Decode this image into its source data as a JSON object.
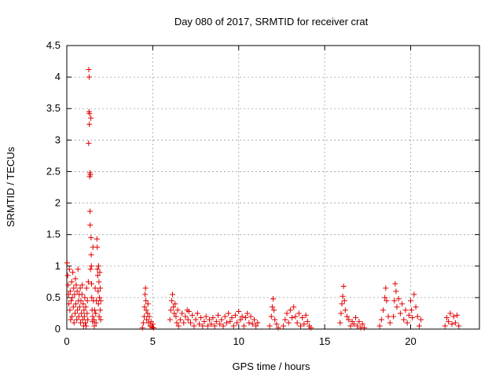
{
  "chart_data": {
    "type": "scatter",
    "title": "Day 080 of 2017, SRMTID for receiver crat",
    "xlabel": "GPS time / hours",
    "ylabel": "SRMTID / TECUs",
    "xlim": [
      0,
      24
    ],
    "ylim": [
      0,
      4.5
    ],
    "x_ticks": [
      0,
      5,
      10,
      15,
      20
    ],
    "x_tick_labels": [
      "0",
      "5",
      "10",
      "15",
      "20"
    ],
    "y_ticks": [
      0,
      0.5,
      1,
      1.5,
      2,
      2.5,
      3,
      3.5,
      4,
      4.5
    ],
    "y_tick_labels": [
      "0",
      "0.5",
      "1",
      "1.5",
      "2",
      "2.5",
      "3",
      "3.5",
      "4",
      "4.5"
    ],
    "grid": true,
    "marker": "+",
    "marker_color": "#e00000",
    "series": [
      {
        "name": "SRMTID",
        "points": [
          [
            0.02,
            1.05
          ],
          [
            0.05,
            0.85
          ],
          [
            0.08,
            0.7
          ],
          [
            0.1,
            0.55
          ],
          [
            0.12,
            0.4
          ],
          [
            0.15,
            0.95
          ],
          [
            0.18,
            0.3
          ],
          [
            0.2,
            0.6
          ],
          [
            0.22,
            0.15
          ],
          [
            0.25,
            0.45
          ],
          [
            0.28,
            0.75
          ],
          [
            0.3,
            0.2
          ],
          [
            0.32,
            0.5
          ],
          [
            0.35,
            0.9
          ],
          [
            0.38,
            0.35
          ],
          [
            0.4,
            0.65
          ],
          [
            0.42,
            0.1
          ],
          [
            0.45,
            0.55
          ],
          [
            0.48,
            0.25
          ],
          [
            0.5,
            0.8
          ],
          [
            0.52,
            0.4
          ],
          [
            0.55,
            0.7
          ],
          [
            0.58,
            0.15
          ],
          [
            0.6,
            0.6
          ],
          [
            0.62,
            0.3
          ],
          [
            0.65,
            0.95
          ],
          [
            0.68,
            0.45
          ],
          [
            0.7,
            0.2
          ],
          [
            0.72,
            0.55
          ],
          [
            0.75,
            0.35
          ],
          [
            0.78,
            0.65
          ],
          [
            0.8,
            0.1
          ],
          [
            0.82,
            0.45
          ],
          [
            0.85,
            0.25
          ],
          [
            0.88,
            0.55
          ],
          [
            0.9,
            0.7
          ],
          [
            0.92,
            0.15
          ],
          [
            0.95,
            0.4
          ],
          [
            0.98,
            0.05
          ],
          [
            1.0,
            0.3
          ],
          [
            1.02,
            0.2
          ],
          [
            1.05,
            0.5
          ],
          [
            1.08,
            0.1
          ],
          [
            1.1,
            0.35
          ],
          [
            1.12,
            0.05
          ],
          [
            1.15,
            0.65
          ],
          [
            1.18,
            0.25
          ],
          [
            1.2,
            0.45
          ],
          [
            1.22,
            0.15
          ],
          [
            1.25,
            0.75
          ],
          [
            1.27,
            2.95
          ],
          [
            1.28,
            4.12
          ],
          [
            1.29,
            3.45
          ],
          [
            1.3,
            4.0
          ],
          [
            1.31,
            3.25
          ],
          [
            1.32,
            3.42
          ],
          [
            1.33,
            2.42
          ],
          [
            1.34,
            2.48
          ],
          [
            1.35,
            1.87
          ],
          [
            1.36,
            1.65
          ],
          [
            1.37,
            2.45
          ],
          [
            1.38,
            0.95
          ],
          [
            1.4,
            3.35
          ],
          [
            1.41,
            1.45
          ],
          [
            1.42,
            1.18
          ],
          [
            1.43,
            1.0
          ],
          [
            1.44,
            0.72
          ],
          [
            1.45,
            0.5
          ],
          [
            1.47,
            0.3
          ],
          [
            1.49,
            0.12
          ],
          [
            1.5,
            0.2
          ],
          [
            1.52,
            1.3
          ],
          [
            1.55,
            0.45
          ],
          [
            1.58,
            0.15
          ],
          [
            1.6,
            0.05
          ],
          [
            1.62,
            0.3
          ],
          [
            1.65,
            0.65
          ],
          [
            1.68,
            0.25
          ],
          [
            1.7,
            0.1
          ],
          [
            1.72,
            0.45
          ],
          [
            1.75,
            1.43
          ],
          [
            1.77,
            1.3
          ],
          [
            1.78,
            0.95
          ],
          [
            1.8,
            0.85
          ],
          [
            1.82,
            0.6
          ],
          [
            1.84,
            0.4
          ],
          [
            1.85,
            1.0
          ],
          [
            1.87,
            0.75
          ],
          [
            1.88,
            0.2
          ],
          [
            1.9,
            0.5
          ],
          [
            1.92,
            0.9
          ],
          [
            1.94,
            0.3
          ],
          [
            1.95,
            0.65
          ],
          [
            1.97,
            0.15
          ],
          [
            1.98,
            0.45
          ],
          [
            4.4,
            0.02
          ],
          [
            4.45,
            0.1
          ],
          [
            4.5,
            0.2
          ],
          [
            4.52,
            0.35
          ],
          [
            4.55,
            0.55
          ],
          [
            4.58,
            0.65
          ],
          [
            4.6,
            0.45
          ],
          [
            4.62,
            0.3
          ],
          [
            4.65,
            0.15
          ],
          [
            4.7,
            0.25
          ],
          [
            4.72,
            0.4
          ],
          [
            4.75,
            0.1
          ],
          [
            4.8,
            0.2
          ],
          [
            4.85,
            0.05
          ],
          [
            4.9,
            0.12
          ],
          [
            4.95,
            0.03
          ],
          [
            5.0,
            0.08
          ],
          [
            5.05,
            0.02
          ],
          [
            6.0,
            0.15
          ],
          [
            6.05,
            0.3
          ],
          [
            6.1,
            0.45
          ],
          [
            6.15,
            0.55
          ],
          [
            6.2,
            0.35
          ],
          [
            6.25,
            0.25
          ],
          [
            6.3,
            0.4
          ],
          [
            6.35,
            0.2
          ],
          [
            6.4,
            0.1
          ],
          [
            6.45,
            0.3
          ],
          [
            6.5,
            0.05
          ],
          [
            6.6,
            0.15
          ],
          [
            6.7,
            0.25
          ],
          [
            6.8,
            0.1
          ],
          [
            6.9,
            0.2
          ],
          [
            7.0,
            0.3
          ],
          [
            7.05,
            0.15
          ],
          [
            7.1,
            0.28
          ],
          [
            7.2,
            0.1
          ],
          [
            7.3,
            0.22
          ],
          [
            7.4,
            0.05
          ],
          [
            7.5,
            0.15
          ],
          [
            7.6,
            0.25
          ],
          [
            7.7,
            0.08
          ],
          [
            7.8,
            0.18
          ],
          [
            7.9,
            0.05
          ],
          [
            8.0,
            0.12
          ],
          [
            8.1,
            0.2
          ],
          [
            8.2,
            0.05
          ],
          [
            8.3,
            0.15
          ],
          [
            8.4,
            0.08
          ],
          [
            8.5,
            0.18
          ],
          [
            8.6,
            0.05
          ],
          [
            8.7,
            0.12
          ],
          [
            8.8,
            0.22
          ],
          [
            8.9,
            0.08
          ],
          [
            9.0,
            0.15
          ],
          [
            9.1,
            0.05
          ],
          [
            9.2,
            0.2
          ],
          [
            9.3,
            0.1
          ],
          [
            9.4,
            0.25
          ],
          [
            9.5,
            0.12
          ],
          [
            9.6,
            0.18
          ],
          [
            9.7,
            0.05
          ],
          [
            9.8,
            0.22
          ],
          [
            9.9,
            0.1
          ],
          [
            10.0,
            0.28
          ],
          [
            10.1,
            0.15
          ],
          [
            10.2,
            0.2
          ],
          [
            10.3,
            0.05
          ],
          [
            10.4,
            0.18
          ],
          [
            10.5,
            0.25
          ],
          [
            10.6,
            0.1
          ],
          [
            10.7,
            0.2
          ],
          [
            10.8,
            0.08
          ],
          [
            10.9,
            0.15
          ],
          [
            11.0,
            0.05
          ],
          [
            11.1,
            0.1
          ],
          [
            11.8,
            0.05
          ],
          [
            11.9,
            0.2
          ],
          [
            11.95,
            0.35
          ],
          [
            12.0,
            0.48
          ],
          [
            12.05,
            0.3
          ],
          [
            12.1,
            0.15
          ],
          [
            12.2,
            0.08
          ],
          [
            12.3,
            0.02
          ],
          [
            12.6,
            0.05
          ],
          [
            12.7,
            0.15
          ],
          [
            12.8,
            0.25
          ],
          [
            12.9,
            0.1
          ],
          [
            13.0,
            0.3
          ],
          [
            13.1,
            0.18
          ],
          [
            13.2,
            0.35
          ],
          [
            13.3,
            0.2
          ],
          [
            13.4,
            0.1
          ],
          [
            13.5,
            0.25
          ],
          [
            13.6,
            0.05
          ],
          [
            13.7,
            0.18
          ],
          [
            13.8,
            0.08
          ],
          [
            13.9,
            0.22
          ],
          [
            14.0,
            0.12
          ],
          [
            14.1,
            0.05
          ],
          [
            14.2,
            0.02
          ],
          [
            15.9,
            0.1
          ],
          [
            15.95,
            0.25
          ],
          [
            16.0,
            0.4
          ],
          [
            16.05,
            0.52
          ],
          [
            16.1,
            0.68
          ],
          [
            16.15,
            0.45
          ],
          [
            16.2,
            0.3
          ],
          [
            16.3,
            0.2
          ],
          [
            16.4,
            0.15
          ],
          [
            16.5,
            0.05
          ],
          [
            16.6,
            0.12
          ],
          [
            16.7,
            0.08
          ],
          [
            16.8,
            0.18
          ],
          [
            16.9,
            0.05
          ],
          [
            17.0,
            0.12
          ],
          [
            17.1,
            0.02
          ],
          [
            17.2,
            0.08
          ],
          [
            17.3,
            0.02
          ],
          [
            18.2,
            0.05
          ],
          [
            18.3,
            0.15
          ],
          [
            18.4,
            0.3
          ],
          [
            18.5,
            0.5
          ],
          [
            18.55,
            0.65
          ],
          [
            18.6,
            0.45
          ],
          [
            18.7,
            0.2
          ],
          [
            18.8,
            0.1
          ],
          [
            19.0,
            0.2
          ],
          [
            19.05,
            0.45
          ],
          [
            19.1,
            0.72
          ],
          [
            19.15,
            0.6
          ],
          [
            19.2,
            0.35
          ],
          [
            19.3,
            0.48
          ],
          [
            19.4,
            0.25
          ],
          [
            19.5,
            0.4
          ],
          [
            19.6,
            0.15
          ],
          [
            19.7,
            0.3
          ],
          [
            19.8,
            0.1
          ],
          [
            19.9,
            0.22
          ],
          [
            20.0,
            0.45
          ],
          [
            20.05,
            0.3
          ],
          [
            20.1,
            0.18
          ],
          [
            20.2,
            0.55
          ],
          [
            20.3,
            0.35
          ],
          [
            20.4,
            0.2
          ],
          [
            20.5,
            0.05
          ],
          [
            20.6,
            0.15
          ],
          [
            22.0,
            0.05
          ],
          [
            22.1,
            0.18
          ],
          [
            22.2,
            0.12
          ],
          [
            22.3,
            0.25
          ],
          [
            22.4,
            0.08
          ],
          [
            22.5,
            0.2
          ],
          [
            22.6,
            0.1
          ],
          [
            22.7,
            0.22
          ],
          [
            22.8,
            0.05
          ]
        ]
      }
    ]
  }
}
